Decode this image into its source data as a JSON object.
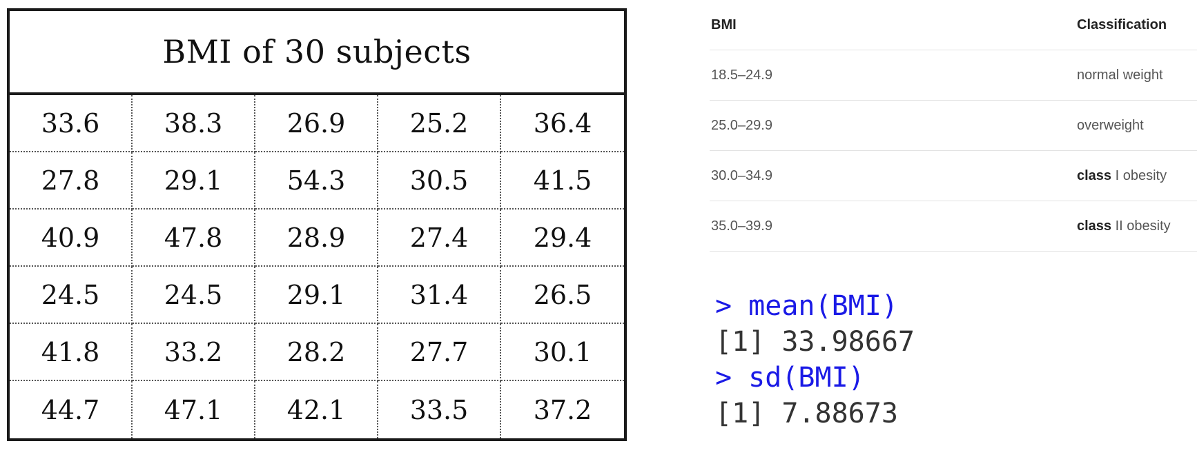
{
  "bmi_table": {
    "title": "BMI of 30 subjects",
    "rows": [
      [
        "33.6",
        "38.3",
        "26.9",
        "25.2",
        "36.4"
      ],
      [
        "27.8",
        "29.1",
        "54.3",
        "30.5",
        "41.5"
      ],
      [
        "40.9",
        "47.8",
        "28.9",
        "27.4",
        "29.4"
      ],
      [
        "24.5",
        "24.5",
        "29.1",
        "31.4",
        "26.5"
      ],
      [
        "41.8",
        "33.2",
        "28.2",
        "27.7",
        "30.1"
      ],
      [
        "44.7",
        "47.1",
        "42.1",
        "33.5",
        "37.2"
      ]
    ]
  },
  "classification_table": {
    "headers": [
      "BMI",
      "Classification"
    ],
    "rows": [
      {
        "range": "18.5–24.9",
        "bold": "",
        "label": "normal weight"
      },
      {
        "range": "25.0–29.9",
        "bold": "",
        "label": "overweight"
      },
      {
        "range": "30.0–34.9",
        "bold": "class",
        "label": " I obesity"
      },
      {
        "range": "35.0–39.9",
        "bold": "class",
        "label": " II obesity"
      }
    ]
  },
  "console": {
    "lines": [
      {
        "kind": "cmd",
        "text": "> mean(BMI)"
      },
      {
        "kind": "out",
        "text": "[1] 33.98667"
      },
      {
        "kind": "cmd",
        "text": "> sd(BMI)"
      },
      {
        "kind": "out",
        "text": "[1] 7.88673"
      }
    ]
  },
  "colors": {
    "command": "#1a1ae6",
    "output": "#333333",
    "border": "#1a1a1a"
  }
}
